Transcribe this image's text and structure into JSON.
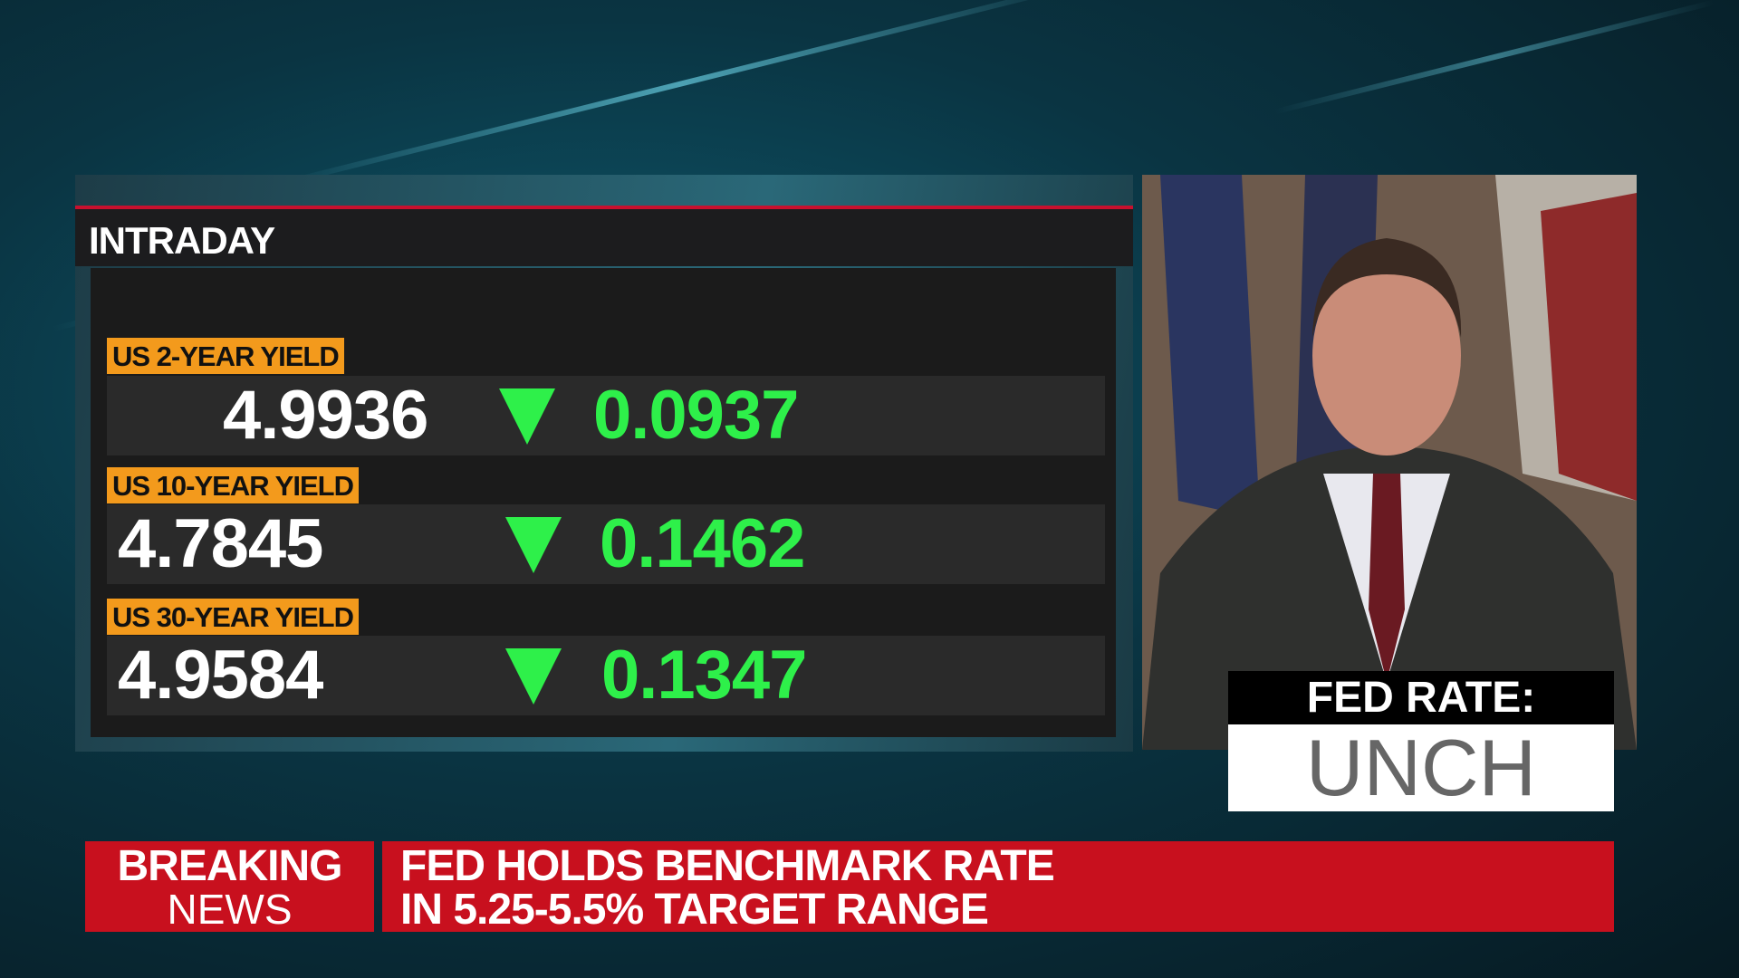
{
  "panel": {
    "title": "INTRADAY",
    "rows": [
      {
        "label": "US 2-YEAR YIELD",
        "value": "4.9936",
        "change": "0.0937"
      },
      {
        "label": "US 10-YEAR YIELD",
        "value": "4.7845",
        "change": "0.1462"
      },
      {
        "label": "US 30-YEAR YIELD",
        "value": "4.9584",
        "change": "0.1347"
      }
    ]
  },
  "side_box": {
    "title": "FED RATE:",
    "value": "UNCH"
  },
  "ticker": {
    "tag_line1": "BREAKING",
    "tag_line2": "NEWS",
    "headline_line1": "FED HOLDS BENCHMARK RATE",
    "headline_line2": "IN 5.25-5.5% TARGET RANGE"
  }
}
